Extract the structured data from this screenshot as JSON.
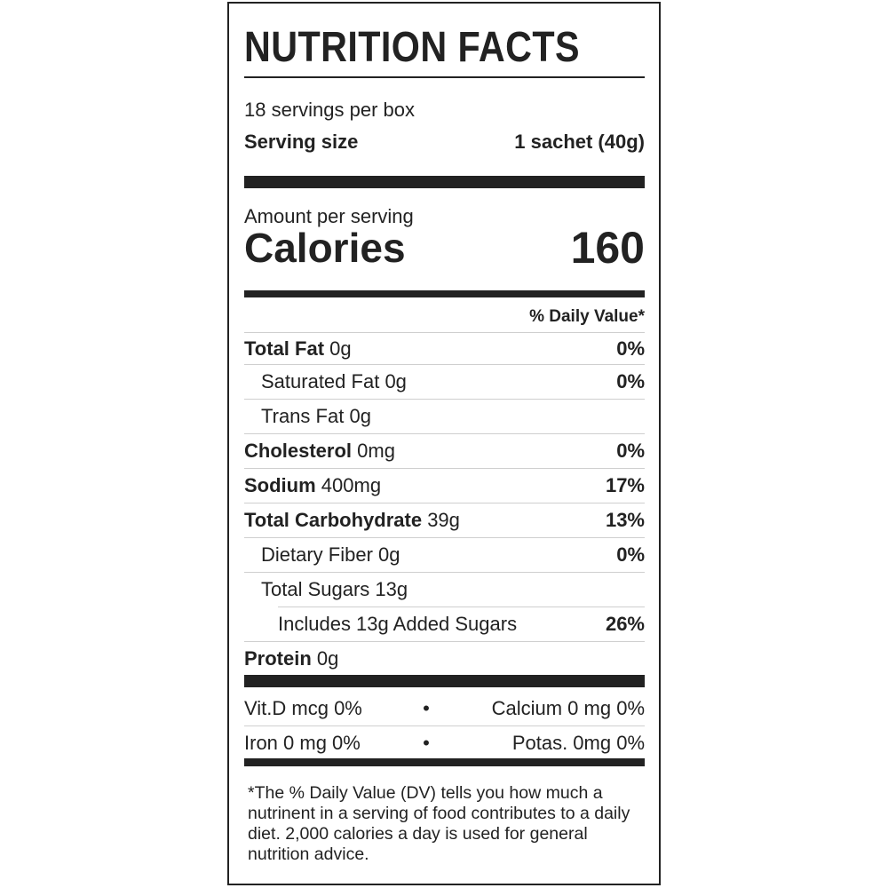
{
  "title": "NUTRITION FACTS",
  "servings_per_container": "18 servings per box",
  "serving_size_label": "Serving size",
  "serving_size_value": "1 sachet (40g)",
  "amount_per_serving": "Amount per serving",
  "calories_label": "Calories",
  "calories_value": "160",
  "daily_value_header": "% Daily Value*",
  "nutrients": [
    {
      "name": "Total Fat",
      "amount": "0g",
      "dv": "0%"
    },
    {
      "name": "Saturated Fat",
      "amount": "0g",
      "dv": "0%"
    },
    {
      "name": "Trans Fat",
      "amount": "0g",
      "dv": ""
    },
    {
      "name": "Cholesterol",
      "amount": "0mg",
      "dv": "0%"
    },
    {
      "name": "Sodium",
      "amount": "400mg",
      "dv": "17%"
    },
    {
      "name": "Total Carbohydrate",
      "amount": "39g",
      "dv": "13%"
    },
    {
      "name": "Dietary Fiber",
      "amount": "0g",
      "dv": "0%"
    },
    {
      "name": "Total Sugars",
      "amount": "13g",
      "dv": ""
    },
    {
      "name": "Includes 13g Added Sugars",
      "amount": "",
      "dv": "26%"
    },
    {
      "name": "Protein",
      "amount": "0g",
      "dv": ""
    }
  ],
  "vitamins": [
    {
      "left": "Vit.D mcg 0%",
      "right": "Calcium 0 mg 0%"
    },
    {
      "left": "Iron 0 mg 0%",
      "right": "Potas. 0mg 0%"
    }
  ],
  "separator": "•",
  "footnote": "*The % Daily Value (DV) tells you how much a nutrinent in a serving of food contributes to a daily diet. 2,000 calories a day is used for general nutrition advice."
}
